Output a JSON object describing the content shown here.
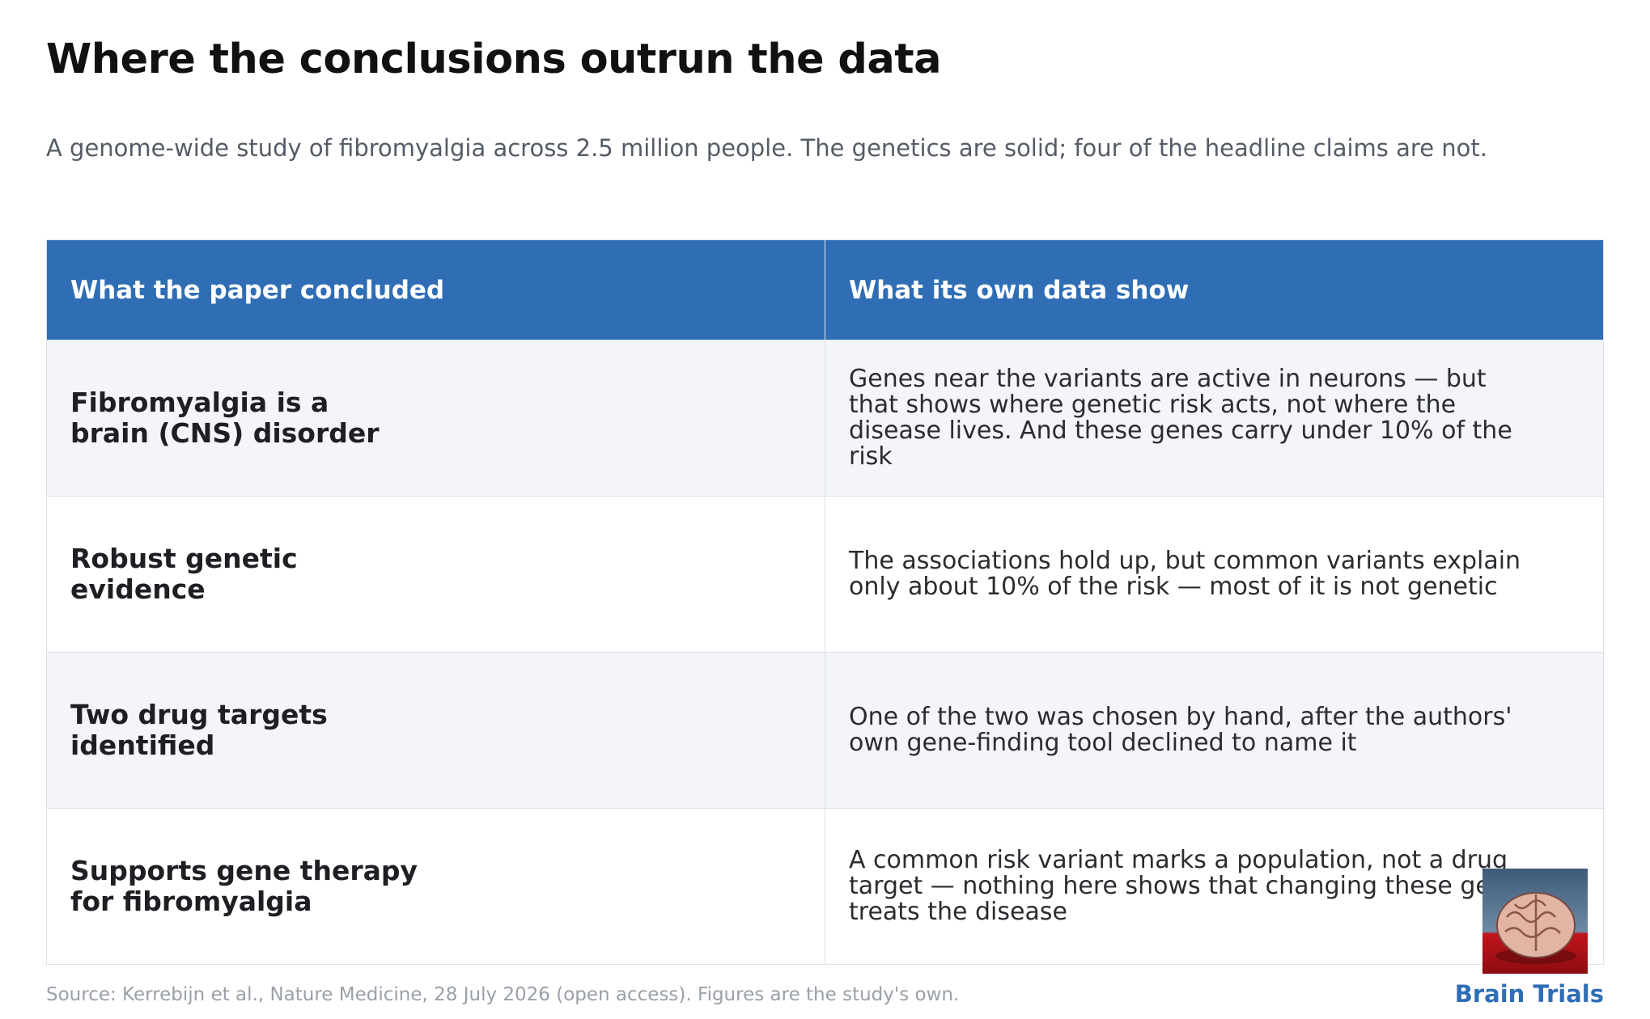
{
  "header": {
    "title": "Where the conclusions outrun the data",
    "subtitle": "A genome-wide study of fibromyalgia across 2.5 million people. The genetics are solid; four of the headline claims are not."
  },
  "table": {
    "columns": [
      "What the paper concluded",
      "What its own data show"
    ],
    "rows": [
      [
        [
          "Fibromyalgia is a",
          "brain (CNS) disorder"
        ],
        [
          "Genes near the variants are active in neurons — but",
          "that shows where genetic risk acts, not where the",
          "disease lives. And these genes carry under 10% of the",
          "risk"
        ]
      ],
      [
        [
          "Robust genetic",
          "evidence"
        ],
        [
          "The associations hold up, but common variants explain",
          "only about 10% of the risk — most of it is not genetic"
        ]
      ],
      [
        [
          "Two drug targets",
          "identified"
        ],
        [
          "One of the two was chosen by hand, after the authors'",
          "own gene-finding tool declined to name it"
        ]
      ],
      [
        [
          "Supports gene therapy",
          "for fibromyalgia"
        ],
        [
          "A common risk variant marks a population, not a drug",
          "target — nothing here shows that changing these genes",
          "treats the disease"
        ]
      ]
    ]
  },
  "footer": {
    "source": "Source: Kerrebijn et al., Nature Medicine, 28 July 2026 (open access). Figures are the study's own.",
    "brand": "Brain Trials"
  }
}
